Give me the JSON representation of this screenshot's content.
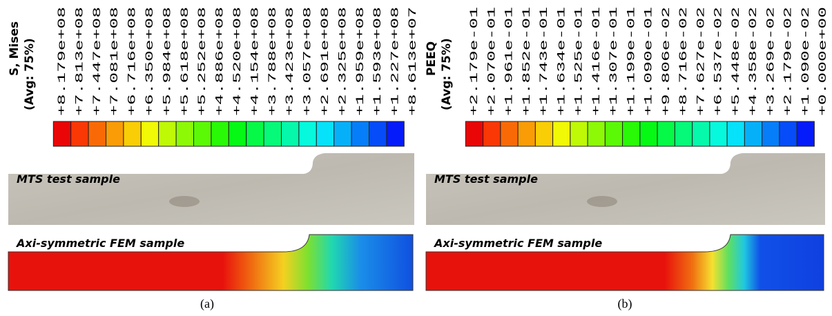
{
  "panels": [
    {
      "legend_title": "S, Mises",
      "legend_subtitle": "(Avg: 75%)",
      "legend_labels": [
        "+8.179e+08",
        "+7.813e+08",
        "+7.447e+08",
        "+7.081e+08",
        "+6.716e+08",
        "+6.350e+08",
        "+5.984e+08",
        "+5.618e+08",
        "+5.252e+08",
        "+4.886e+08",
        "+4.520e+08",
        "+4.154e+08",
        "+3.788e+08",
        "+3.423e+08",
        "+3.057e+08",
        "+2.691e+08",
        "+2.325e+08",
        "+1.959e+08",
        "+1.593e+08",
        "+1.227e+08",
        "+8.613e+07"
      ],
      "photo_label": "MTS test sample",
      "fem_label": "Axi-symmetric FEM sample",
      "caption": "(a)"
    },
    {
      "legend_title": "PEEQ",
      "legend_subtitle": "(Avg: 75%)",
      "legend_labels": [
        "+2.179e-01",
        "+2.070e-01",
        "+1.961e-01",
        "+1.852e-01",
        "+1.743e-01",
        "+1.634e-01",
        "+1.525e-01",
        "+1.416e-01",
        "+1.307e-01",
        "+1.199e-01",
        "+1.090e-01",
        "+9.806e-02",
        "+8.716e-02",
        "+7.627e-02",
        "+6.537e-02",
        "+5.448e-02",
        "+4.358e-02",
        "+3.269e-02",
        "+2.179e-02",
        "+1.090e-02",
        "+0.000e+00"
      ],
      "photo_label": "MTS test sample",
      "fem_label": "Axi-symmetric FEM sample",
      "caption": "(b)"
    }
  ]
}
